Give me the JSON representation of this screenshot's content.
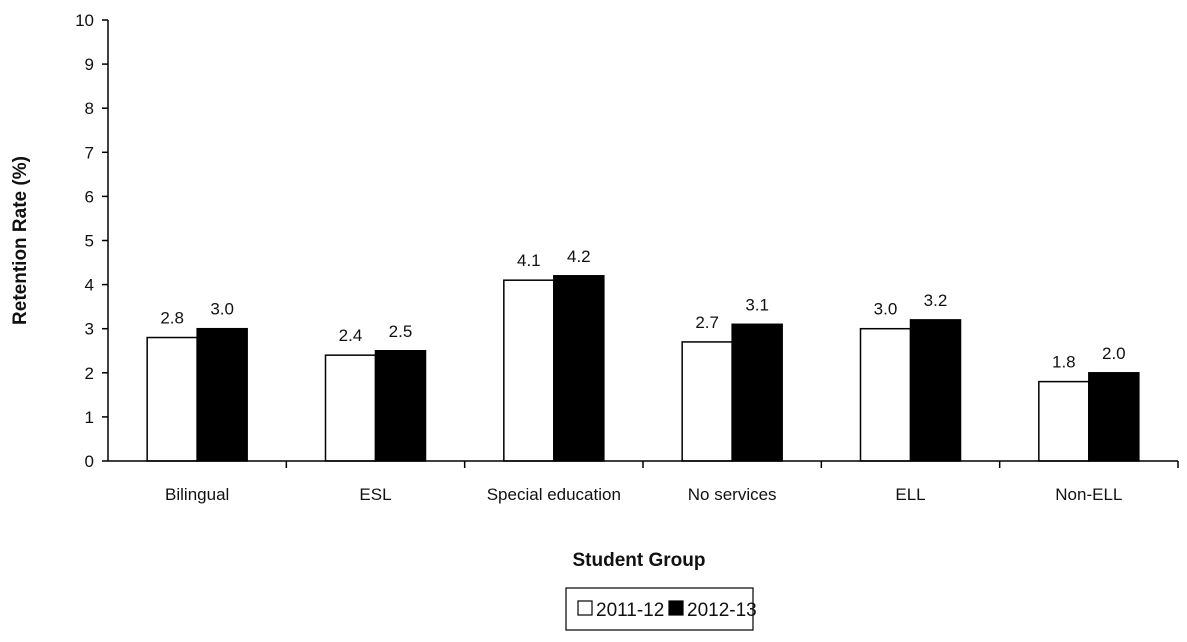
{
  "chart_data": {
    "type": "bar",
    "title": "",
    "xlabel": "Student Group",
    "ylabel": "Retention Rate (%)",
    "ylim": [
      0,
      10
    ],
    "yticks": [
      0,
      1,
      2,
      3,
      4,
      5,
      6,
      7,
      8,
      9,
      10
    ],
    "categories": [
      "Bilingual",
      "ESL",
      "Special education",
      "No services",
      "ELL",
      "Non-ELL"
    ],
    "series": [
      {
        "name": "2011-12",
        "values": [
          2.8,
          2.4,
          4.1,
          2.7,
          3.0,
          1.8
        ],
        "labels": [
          "2.8",
          "2.4",
          "4.1",
          "2.7",
          "3.0",
          "1.8"
        ],
        "color": "#ffffff"
      },
      {
        "name": "2012-13",
        "values": [
          3.0,
          2.5,
          4.2,
          3.1,
          3.2,
          2.0
        ],
        "labels": [
          "3.0",
          "2.5",
          "4.2",
          "3.1",
          "3.2",
          "2.0"
        ],
        "color": "#000000"
      }
    ],
    "grid": false,
    "legend_position": "bottom"
  }
}
